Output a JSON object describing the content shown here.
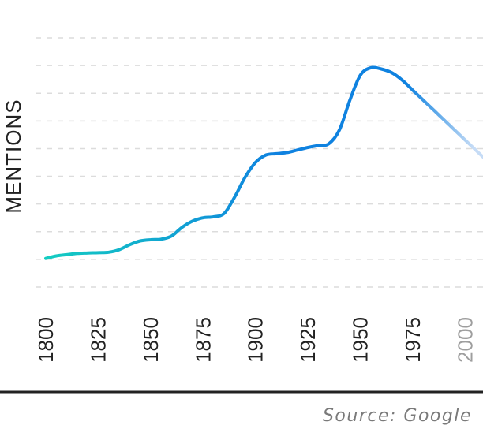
{
  "chart_data": {
    "type": "line",
    "title": "",
    "xlabel": "",
    "ylabel": "MENTIONS",
    "xlim": [
      1800,
      2010
    ],
    "ylim": [
      0,
      10
    ],
    "x_ticks": [
      "1800",
      "1825",
      "1850",
      "1875",
      "1900",
      "1925",
      "1950",
      "1975",
      "2000"
    ],
    "grid": true,
    "y_tick_labels_shown": false,
    "series": [
      {
        "x": [
          1800,
          1805,
          1810,
          1815,
          1820,
          1825,
          1830,
          1835,
          1840,
          1845,
          1850,
          1855,
          1860,
          1865,
          1870,
          1875,
          1880,
          1885,
          1890,
          1895,
          1900,
          1905,
          1910,
          1915,
          1920,
          1925,
          1930,
          1935,
          1940,
          1945,
          1950,
          1955,
          1960,
          1965,
          1970,
          1975,
          1980,
          1985,
          1990,
          1995,
          2000,
          2005,
          2010
        ],
        "y": [
          1.15,
          1.25,
          1.3,
          1.35,
          1.37,
          1.38,
          1.4,
          1.5,
          1.7,
          1.85,
          1.9,
          1.92,
          2.05,
          2.4,
          2.65,
          2.78,
          2.82,
          2.95,
          3.6,
          4.4,
          5.0,
          5.3,
          5.35,
          5.4,
          5.5,
          5.6,
          5.68,
          5.75,
          6.3,
          7.5,
          8.5,
          8.8,
          8.75,
          8.6,
          8.3,
          7.9,
          7.5,
          7.1,
          6.7,
          6.3,
          5.9,
          5.5,
          5.1
        ],
        "colors": {
          "start": "#14d0c0",
          "mid": "#0f82e0",
          "end": "#c6dcf6"
        }
      }
    ],
    "source": "Source: Google"
  }
}
